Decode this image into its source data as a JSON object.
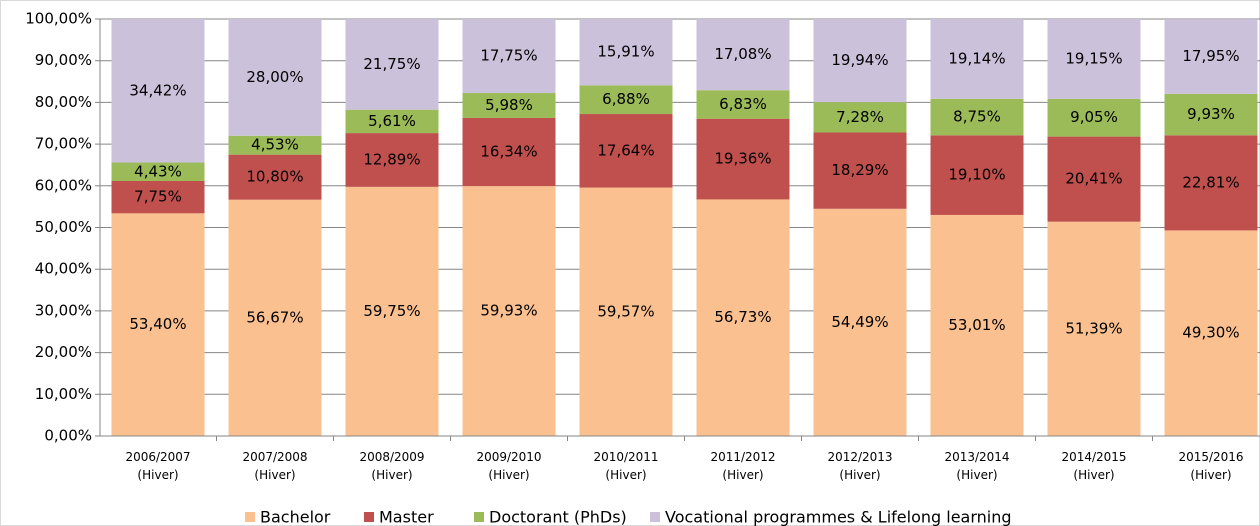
{
  "chart_data": {
    "type": "stacked_bar",
    "categories": [
      "2006/2007 (Hiver)",
      "2007/2008 (Hiver)",
      "2008/2009 (Hiver)",
      "2009/2010 (Hiver)",
      "2010/2011 (Hiver)",
      "2011/2012 (Hiver)",
      "2012/2013 (Hiver)",
      "2013/2014 (Hiver)",
      "2014/2015 (Hiver)",
      "2015/2016 (Hiver)"
    ],
    "series": [
      {
        "name": "Bachelor",
        "color": "#fac090",
        "values": [
          53.4,
          56.67,
          59.75,
          59.93,
          59.57,
          56.73,
          54.49,
          53.01,
          51.39,
          49.3
        ],
        "value_labels": [
          "53,40%",
          "56,67%",
          "59,75%",
          "59,93%",
          "59,57%",
          "56,73%",
          "54,49%",
          "53,01%",
          "51,39%",
          "49,30%"
        ]
      },
      {
        "name": "Master",
        "color": "#c0504d",
        "values": [
          7.75,
          10.8,
          12.89,
          16.34,
          17.64,
          19.36,
          18.29,
          19.1,
          20.41,
          22.81
        ],
        "value_labels": [
          "7,75%",
          "10,80%",
          "12,89%",
          "16,34%",
          "17,64%",
          "19,36%",
          "18,29%",
          "19,10%",
          "20,41%",
          "22,81%"
        ]
      },
      {
        "name": "Doctorant (PhDs)",
        "color": "#9bbb59",
        "values": [
          4.43,
          4.53,
          5.61,
          5.98,
          6.88,
          6.83,
          7.28,
          8.75,
          9.05,
          9.93
        ],
        "value_labels": [
          "4,43%",
          "4,53%",
          "5,61%",
          "5,98%",
          "6,88%",
          "6,83%",
          "7,28%",
          "8,75%",
          "9,05%",
          "9,93%"
        ]
      },
      {
        "name": "Vocational programmes & Lifelong learning",
        "color": "#ccc1da",
        "values": [
          34.42,
          28.0,
          21.75,
          17.75,
          15.91,
          17.08,
          19.94,
          19.14,
          19.15,
          17.95
        ],
        "value_labels": [
          "34,42%",
          "28,00%",
          "21,75%",
          "17,75%",
          "15,91%",
          "17,08%",
          "19,94%",
          "19,14%",
          "19,15%",
          "17,95%"
        ]
      }
    ],
    "ylim": [
      0,
      100
    ],
    "yticks": [
      {
        "value": 0,
        "label": "0,00%"
      },
      {
        "value": 10,
        "label": "10,00%"
      },
      {
        "value": 20,
        "label": "20,00%"
      },
      {
        "value": 30,
        "label": "30,00%"
      },
      {
        "value": 40,
        "label": "40,00%"
      },
      {
        "value": 50,
        "label": "50,00%"
      },
      {
        "value": 60,
        "label": "60,00%"
      },
      {
        "value": 70,
        "label": "70,00%"
      },
      {
        "value": 80,
        "label": "80,00%"
      },
      {
        "value": 90,
        "label": "90,00%"
      },
      {
        "value": 100,
        "label": "100,00%"
      }
    ],
    "grid": true,
    "legend": "bottom"
  }
}
